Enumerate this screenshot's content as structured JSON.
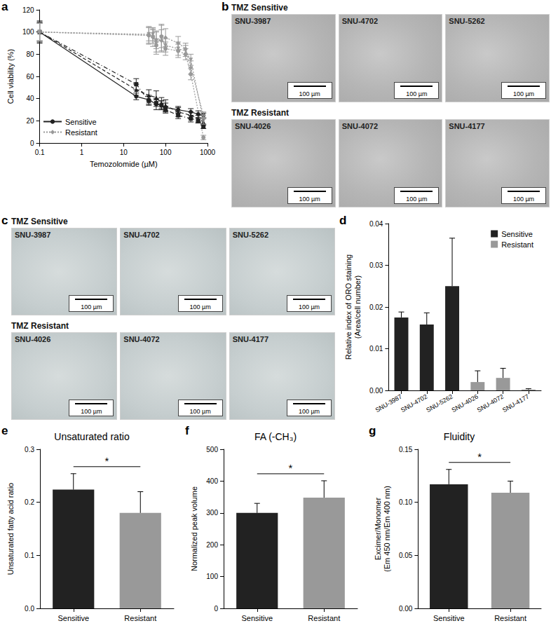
{
  "chart_data": [
    {
      "panel": "a",
      "type": "line",
      "xlabel": "Temozolomide (µM)",
      "ylabel": "Cell viability (%)",
      "log": "x",
      "grid": false,
      "legend": "lower left",
      "xlim": [
        0.1,
        1000
      ],
      "xticks": [
        0.1,
        1,
        10,
        100,
        1000
      ],
      "ylim": [
        0,
        120
      ],
      "yticks": [
        0,
        20,
        40,
        60,
        80,
        100,
        120
      ],
      "series": [
        {
          "name": "Sensitive",
          "color": "#222222",
          "marker": "circle",
          "line_style": "solid",
          "x": [
            0.1,
            20,
            40,
            60,
            80,
            100,
            200,
            400,
            600,
            800
          ],
          "values": [
            100,
            42,
            39,
            35,
            34,
            32,
            30,
            28,
            26,
            25
          ],
          "errors": [
            8,
            3,
            4,
            5,
            4,
            4,
            3,
            3,
            3,
            2
          ]
        },
        {
          "name": "Sensitive",
          "color": "#222222",
          "marker": "triangle",
          "line_style": "dashed",
          "x": [
            0.1,
            20,
            40,
            60,
            80,
            100,
            200,
            400,
            600,
            800
          ],
          "values": [
            100,
            48,
            43,
            41,
            36,
            34,
            28,
            25,
            22,
            19
          ],
          "errors": [
            10,
            5,
            5,
            6,
            5,
            5,
            4,
            3,
            3,
            3
          ]
        },
        {
          "name": "Sensitive",
          "color": "#222222",
          "marker": "square",
          "line_style": "dashdot",
          "x": [
            0.1,
            20,
            40,
            60,
            80,
            100,
            200,
            400,
            600,
            800
          ],
          "values": [
            100,
            53,
            38,
            36,
            34,
            30,
            25,
            22,
            20,
            15
          ],
          "errors": [
            9,
            5,
            4,
            3,
            4,
            3,
            3,
            3,
            2,
            2
          ]
        },
        {
          "name": "Resistant",
          "color": "#999999",
          "marker": "diamond",
          "line_style": "dotted",
          "x": [
            0.1,
            40,
            50,
            60,
            80,
            100,
            200,
            300,
            400,
            800
          ],
          "values": [
            100,
            97,
            95,
            93,
            92,
            95,
            90,
            85,
            68,
            25
          ],
          "errors": [
            8,
            8,
            8,
            8,
            10,
            8,
            6,
            5,
            6,
            3
          ]
        },
        {
          "name": "Resistant",
          "color": "#999999",
          "marker": "triangle-down",
          "line_style": "dotted",
          "x": [
            0.1,
            40,
            50,
            60,
            80,
            100,
            200,
            300,
            400,
            800
          ],
          "values": [
            100,
            98,
            98,
            90,
            95,
            88,
            85,
            83,
            75,
            20
          ],
          "errors": [
            8,
            6,
            6,
            10,
            12,
            6,
            6,
            5,
            5,
            3
          ]
        },
        {
          "name": "Resistant",
          "color": "#999999",
          "marker": "circle",
          "line_style": "dotted",
          "x": [
            0.1,
            40,
            50,
            60,
            80,
            100,
            200,
            300,
            400,
            800
          ],
          "values": [
            100,
            97,
            96,
            88,
            96,
            85,
            83,
            80,
            62,
            5
          ],
          "errors": [
            8,
            7,
            6,
            6,
            10,
            6,
            6,
            5,
            5,
            2
          ]
        }
      ]
    },
    {
      "panel": "d",
      "type": "bar",
      "ylabel": "Relative index of ORO staining\n(Area/cell number)",
      "grid": false,
      "legend": "upper right",
      "categories": [
        "SNU-3987",
        "SNU-4702",
        "SNU-5262",
        "SNU-4026",
        "SNU-4072",
        "SNU-4177"
      ],
      "ylim": [
        0,
        0.04
      ],
      "yticks": [
        {
          "value": 0,
          "label": "0.00"
        },
        {
          "value": 0.01,
          "label": "0.01"
        },
        {
          "value": 0.02,
          "label": "0.02"
        },
        {
          "value": 0.03,
          "label": "0.03"
        },
        {
          "value": 0.04,
          "label": "0.04"
        }
      ],
      "series": [
        {
          "name": "Sensitive",
          "color": "#222222",
          "values": [
            0.0175,
            0.0158,
            0.025,
            null,
            null,
            null
          ],
          "errors": [
            0.0013,
            0.0028,
            0.0115,
            null,
            null,
            null
          ]
        },
        {
          "name": "Resistant",
          "color": "#999999",
          "values": [
            null,
            null,
            null,
            0.002,
            0.003,
            0.0002
          ],
          "errors": [
            null,
            null,
            null,
            0.0027,
            0.0023,
            0.0002
          ]
        }
      ]
    },
    {
      "panel": "e",
      "type": "bar",
      "title": "Unsaturated ratio",
      "ylabel": "Unsaturated fatty acid ratio",
      "grid": false,
      "categories": [
        "Sensitive",
        "Resistant"
      ],
      "values": [
        0.224,
        0.18
      ],
      "errors": [
        0.03,
        0.04
      ],
      "colors": [
        "#222222",
        "#999999"
      ],
      "ylim": [
        0,
        0.3
      ],
      "yticks": [
        {
          "value": 0,
          "label": "0.0"
        },
        {
          "value": 0.1,
          "label": "0.1"
        },
        {
          "value": 0.2,
          "label": "0.2"
        },
        {
          "value": 0.3,
          "label": "0.3"
        }
      ],
      "annotations": [
        "*"
      ]
    },
    {
      "panel": "f",
      "type": "bar",
      "title": "FA (-CH₃)",
      "ylabel": "Normalized peak volume",
      "grid": false,
      "categories": [
        "Sensitive",
        "Resistant"
      ],
      "values": [
        300,
        348
      ],
      "errors": [
        30,
        53
      ],
      "colors": [
        "#222222",
        "#999999"
      ],
      "ylim": [
        0,
        500
      ],
      "yticks": [
        0,
        100,
        200,
        300,
        400,
        500
      ],
      "annotations": [
        "*"
      ]
    },
    {
      "panel": "g",
      "type": "bar",
      "title": "Fluidity",
      "ylabel": "Excimer/Monomer\n(Em 450 nm/Em 400 nm)",
      "grid": false,
      "categories": [
        "Sensitive",
        "Resistant"
      ],
      "values": [
        0.117,
        0.109
      ],
      "errors": [
        0.014,
        0.011
      ],
      "colors": [
        "#222222",
        "#999999"
      ],
      "ylim": [
        0,
        0.15
      ],
      "yticks": [
        {
          "value": 0,
          "label": "0.00"
        },
        {
          "value": 0.05,
          "label": "0.05"
        },
        {
          "value": 0.1,
          "label": "0.10"
        },
        {
          "value": 0.15,
          "label": "0.15"
        }
      ],
      "annotations": [
        "*"
      ]
    }
  ],
  "image_panels": [
    {
      "panel": "b",
      "groups": [
        {
          "title": "TMZ Sensitive",
          "images": [
            {
              "label": "SNU-3987",
              "scale_bar": "100 µm"
            },
            {
              "label": "SNU-4702",
              "scale_bar": "100 µm"
            },
            {
              "label": "SNU-5262",
              "scale_bar": "100 µm"
            }
          ]
        },
        {
          "title": "TMZ Resistant",
          "images": [
            {
              "label": "SNU-4026",
              "scale_bar": "100 µm"
            },
            {
              "label": "SNU-4072",
              "scale_bar": "100 µm"
            },
            {
              "label": "SNU-4177",
              "scale_bar": "100 µm"
            }
          ]
        }
      ]
    },
    {
      "panel": "c",
      "groups": [
        {
          "title": "TMZ Sensitive",
          "images": [
            {
              "label": "SNU-3987",
              "scale_bar": "100 µm"
            },
            {
              "label": "SNU-4702",
              "scale_bar": "100 µm"
            },
            {
              "label": "SNU-5262",
              "scale_bar": "100 µm"
            }
          ]
        },
        {
          "title": "TMZ Resistant",
          "images": [
            {
              "label": "SNU-4026",
              "scale_bar": "100 µm"
            },
            {
              "label": "SNU-4072",
              "scale_bar": "100 µm"
            },
            {
              "label": "SNU-4177",
              "scale_bar": "100 µm"
            }
          ]
        }
      ]
    }
  ]
}
